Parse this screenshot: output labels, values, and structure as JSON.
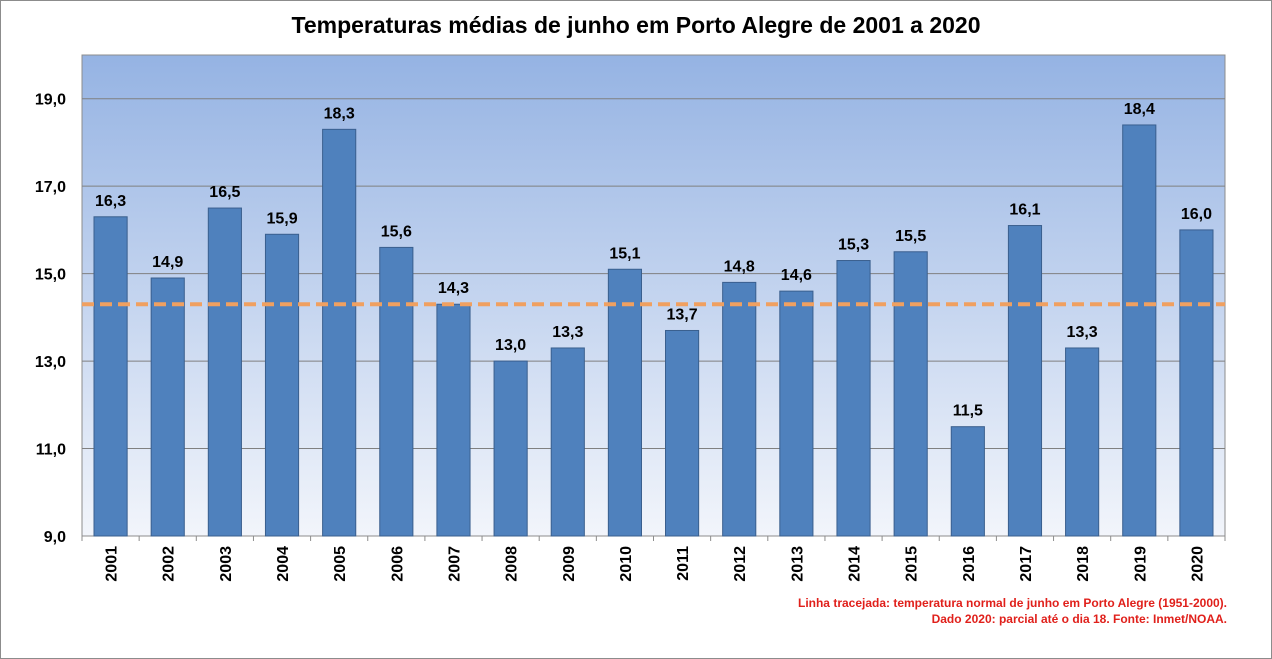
{
  "chart_data": {
    "type": "bar",
    "title": "Temperaturas médias de junho em Porto Alegre de 2001 a 2020",
    "categories": [
      "2001",
      "2002",
      "2003",
      "2004",
      "2005",
      "2006",
      "2007",
      "2008",
      "2009",
      "2010",
      "2011",
      "2012",
      "2013",
      "2014",
      "2015",
      "2016",
      "2017",
      "2018",
      "2019",
      "2020"
    ],
    "values": [
      16.3,
      14.9,
      16.5,
      15.9,
      18.3,
      15.6,
      14.3,
      13.0,
      13.3,
      15.1,
      13.7,
      14.8,
      14.6,
      15.3,
      15.5,
      11.5,
      16.1,
      13.3,
      18.4,
      16.0
    ],
    "data_labels": [
      "16,3",
      "14,9",
      "16,5",
      "15,9",
      "18,3",
      "15,6",
      "14,3",
      "13,0",
      "13,3",
      "15,1",
      "13,7",
      "14,8",
      "14,6",
      "15,3",
      "15,5",
      "11,5",
      "16,1",
      "13,3",
      "18,4",
      "16,0"
    ],
    "ylim": [
      9.0,
      20.0
    ],
    "y_ticks": [
      9.0,
      11.0,
      13.0,
      15.0,
      17.0,
      19.0
    ],
    "y_tick_labels": [
      "9,0",
      "11,0",
      "13,0",
      "15,0",
      "17,0",
      "19,0"
    ],
    "reference_line": {
      "value": 14.3,
      "style": "dashed",
      "color": "#f0a060"
    },
    "bar_color": "#4f81bd",
    "grid": true,
    "notes": [
      "Linha tracejada: temperatura normal de junho em Porto Alegre (1951-2000).",
      "Dado 2020: parcial até o dia 18. Fonte: Inmet/NOAA."
    ]
  }
}
